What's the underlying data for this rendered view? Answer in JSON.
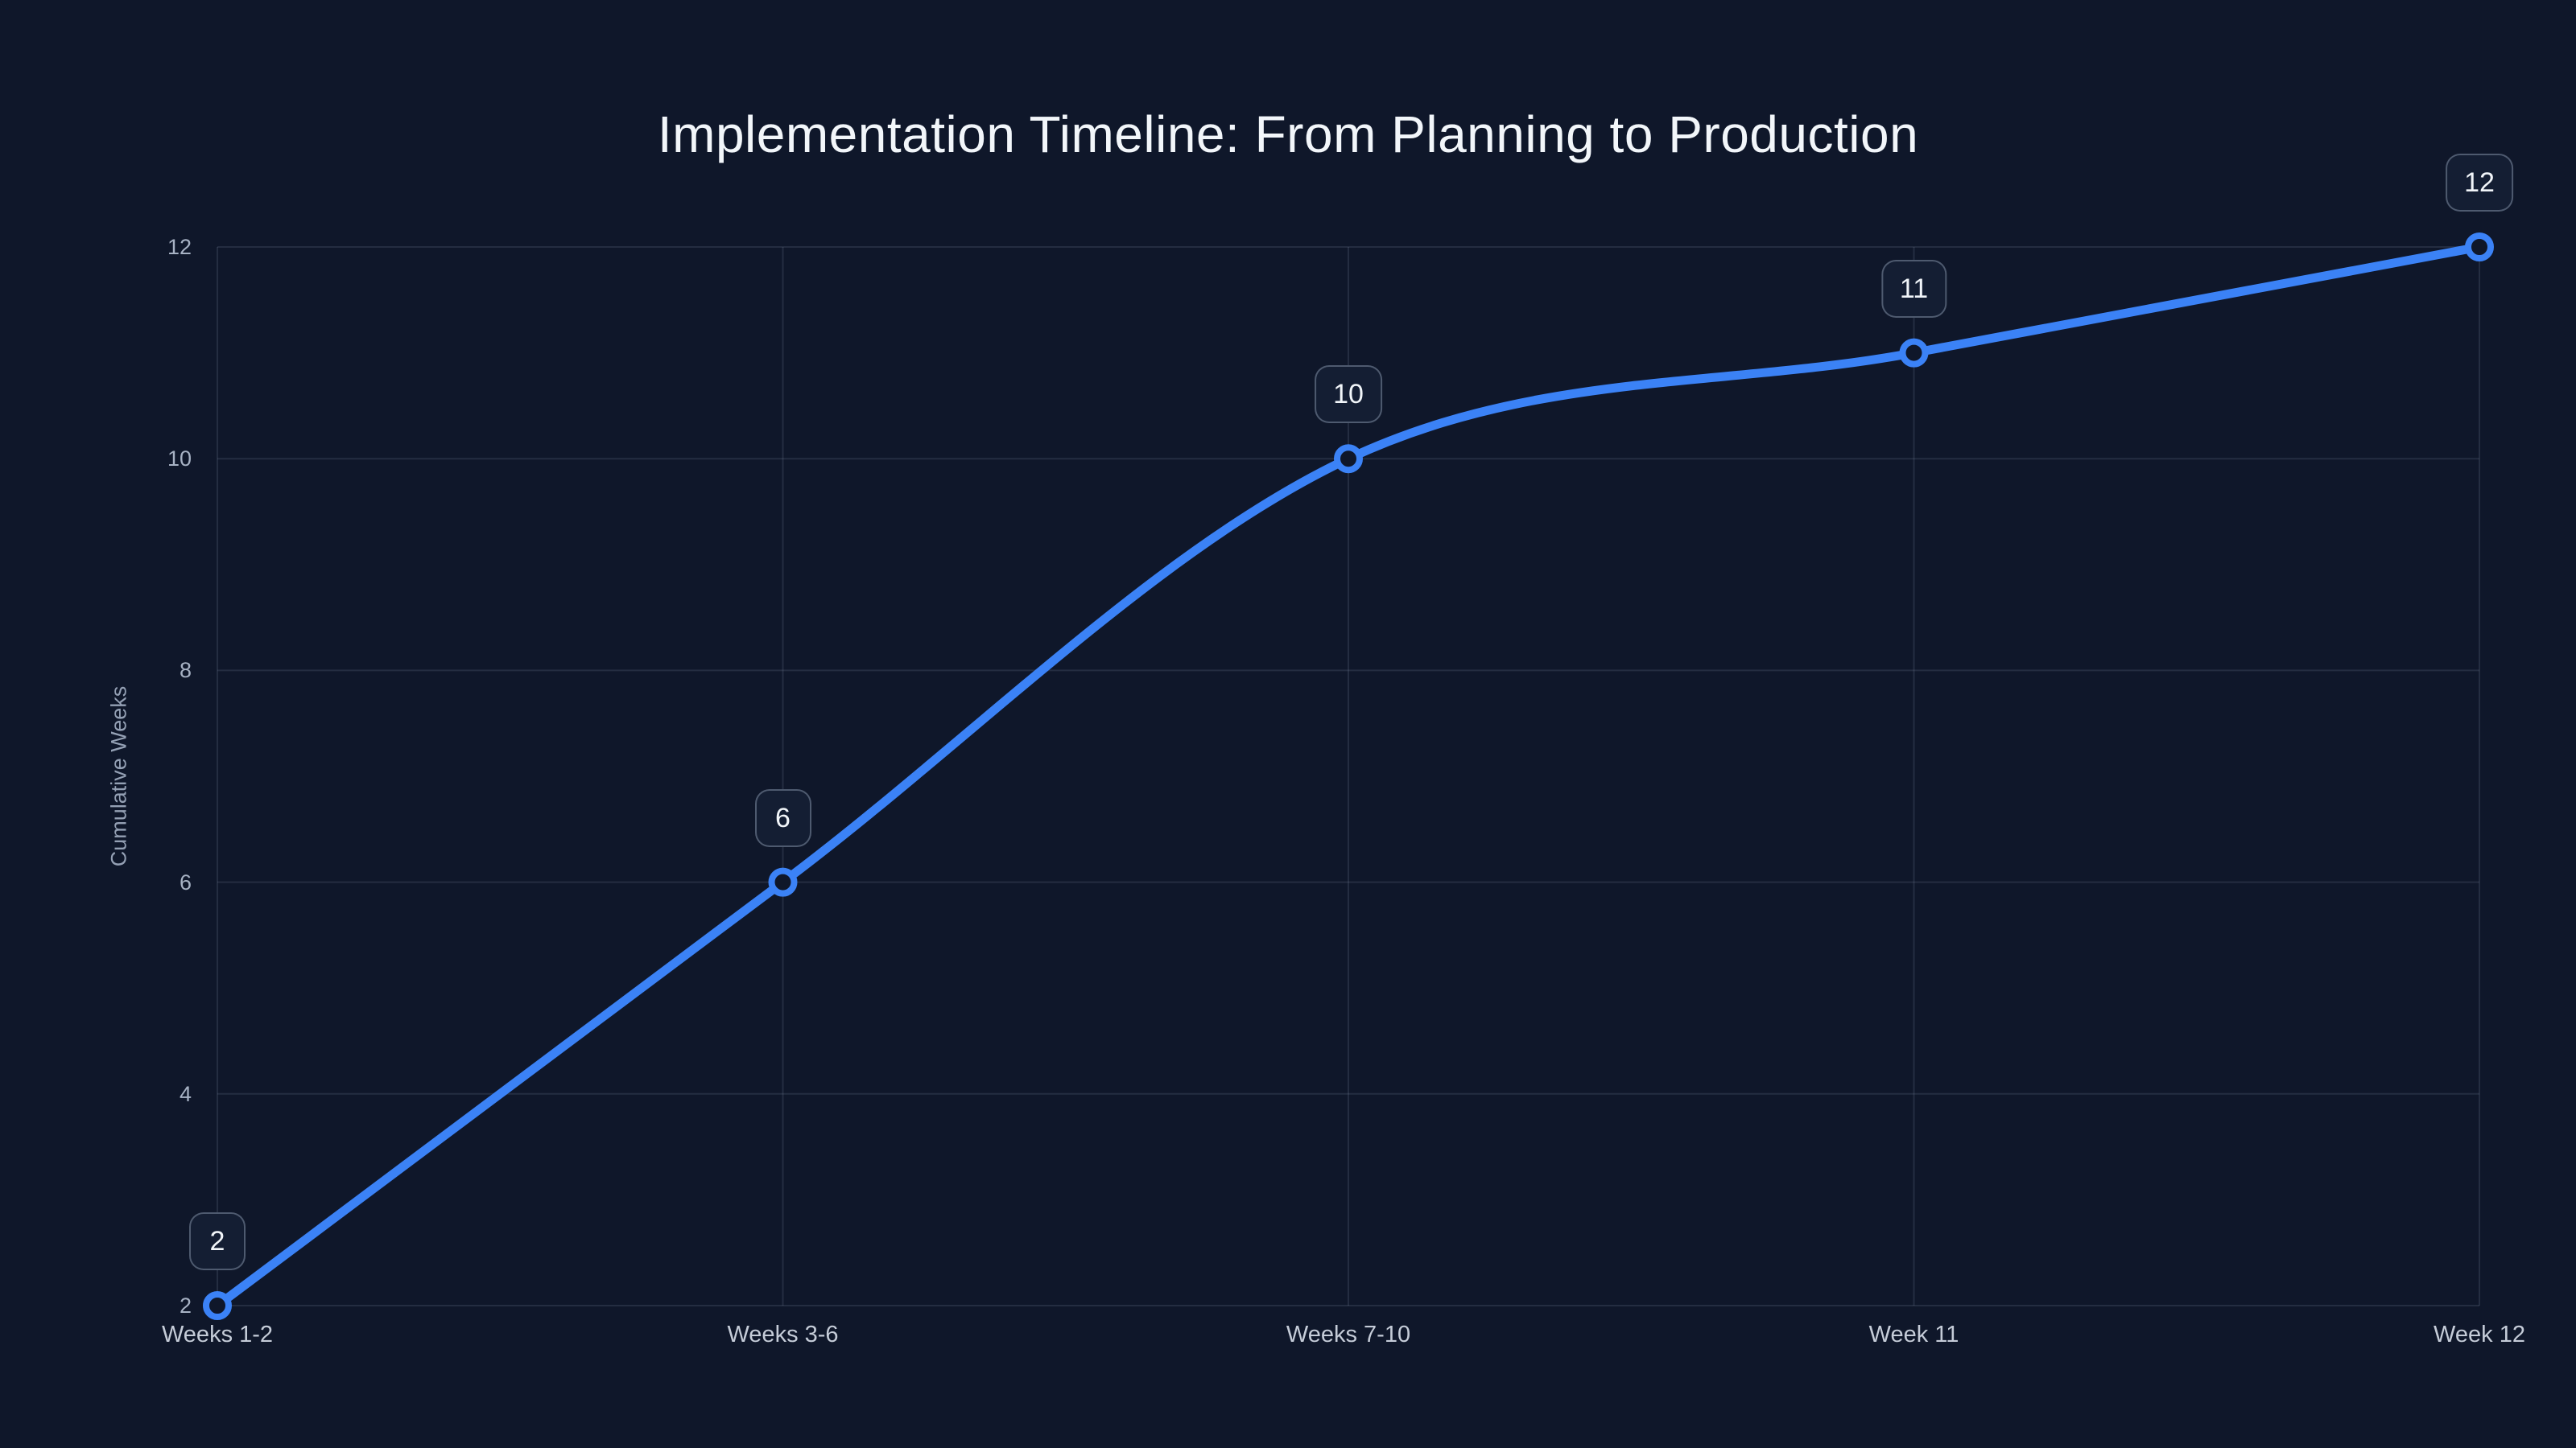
{
  "chart_data": {
    "type": "line",
    "title": "Implementation Timeline: From Planning to Production",
    "categories": [
      "Weeks 1-2",
      "Weeks 3-6",
      "Weeks 7-10",
      "Week 11",
      "Week 12"
    ],
    "series": [
      {
        "name": "Cumulative Weeks",
        "values": [
          2,
          6,
          10,
          11,
          12
        ]
      }
    ],
    "data_labels": [
      "2",
      "6",
      "10",
      "11",
      "12"
    ],
    "xlabel": "",
    "ylabel": "Cumulative Weeks",
    "yticks": [
      2,
      4,
      6,
      8,
      10,
      12
    ],
    "ylim": [
      2,
      12
    ],
    "line_shape": "spline",
    "grid": true,
    "legend_position": "none",
    "marker_style": "open-circle"
  },
  "colors": {
    "background": "#0f172a",
    "line": "#3b82f6",
    "grid": "rgba(148,163,184,0.16)",
    "title_text": "#f2f6fa",
    "y_tick_text": "#a7b2c4",
    "x_tick_text": "#c5ccd8",
    "axis_title_text": "#94a0b4",
    "badge_background": "#141e33",
    "badge_border": "rgba(148,163,184,0.45)",
    "badge_text": "#f1f5f9",
    "marker_fill": "#0f172a"
  }
}
